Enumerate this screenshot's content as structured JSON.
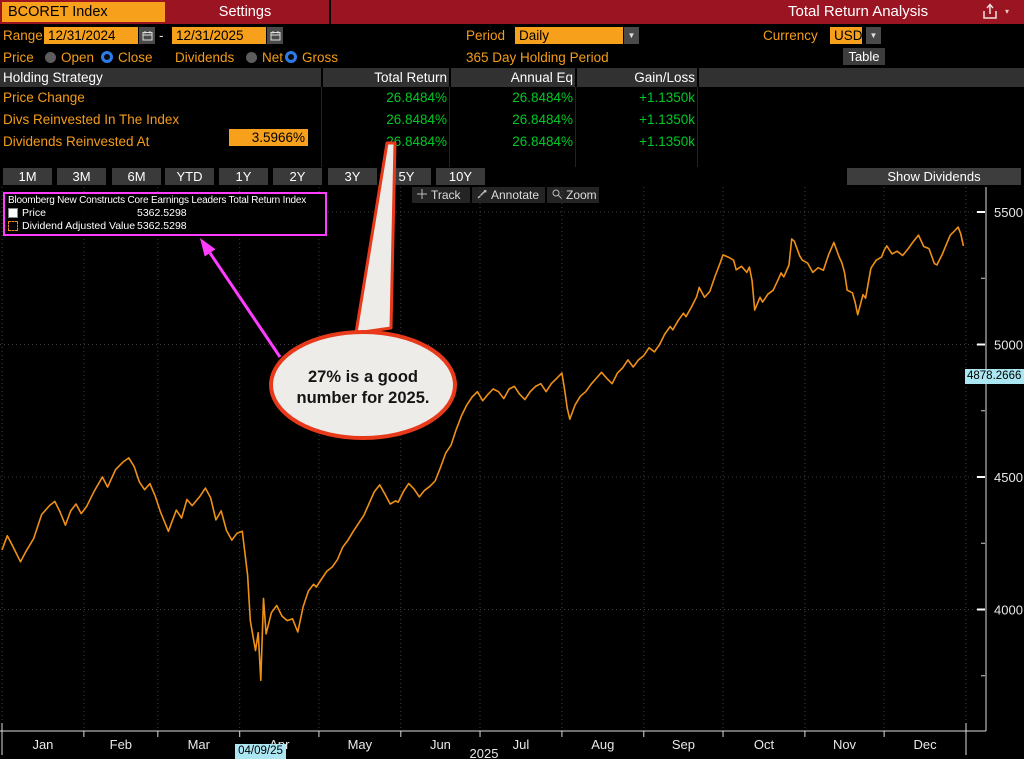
{
  "titlebar": {
    "ticker": "BCORET Index",
    "settings_tab": "Settings",
    "title": "Total Return Analysis"
  },
  "controls": {
    "range_label": "Range",
    "range_start": "12/31/2024",
    "range_separator": "-",
    "range_end": "12/31/2025",
    "period_label": "Period",
    "period_value": "Daily",
    "currency_label": "Currency",
    "currency_value": "USD",
    "price_label": "Price",
    "price_open": "Open",
    "price_close": "Close",
    "price_selected": "Close",
    "dividends_label": "Dividends",
    "dividends_net": "Net",
    "dividends_gross": "Gross",
    "dividends_selected": "Gross",
    "holding_period_text": "365 Day Holding Period",
    "table_button_label": "Table"
  },
  "strategy_table": {
    "headers": {
      "strategy": "Holding Strategy",
      "total_return": "Total Return",
      "annual_eq": "Annual Eq",
      "gain_loss": "Gain/Loss"
    },
    "rows": [
      {
        "label": "Price Change",
        "total_return": "26.8484%",
        "annual_eq": "26.8484%",
        "gain_loss": "+1.1350k"
      },
      {
        "label": "Divs Reinvested In The Index",
        "total_return": "26.8484%",
        "annual_eq": "26.8484%",
        "gain_loss": "+1.1350k"
      },
      {
        "label": "Dividends Reinvested At",
        "rate_input": "3.5966%",
        "total_return": "26.8484%",
        "annual_eq": "26.8484%",
        "gain_loss": "+1.1350k"
      }
    ]
  },
  "period_buttons": [
    "1M",
    "3M",
    "6M",
    "YTD",
    "1Y",
    "2Y",
    "3Y",
    "5Y",
    "10Y"
  ],
  "show_dividends_label": "Show Dividends",
  "chart_toolbar": {
    "track": "Track",
    "annotate": "Annotate",
    "zoom": "Zoom"
  },
  "legend": {
    "title": "Bloomberg New Constructs Core Earnings Leaders Total Return Index",
    "items": [
      {
        "label": "Price",
        "value": "5362.5298"
      },
      {
        "label": "Dividend Adjusted Value",
        "value": "5362.5298"
      }
    ]
  },
  "annotation_bubble": {
    "line1": "27% is a good",
    "line2": "number for 2025."
  },
  "crosshair": {
    "date": "04/09/25",
    "value": "4878.2666"
  },
  "colors": {
    "titlebar_red": "#9a1422",
    "amber": "#f6a01b",
    "orange_text": "#f49c1b",
    "green": "#00c926",
    "magenta": "#ff3cff",
    "callout_red": "#e8391b",
    "line_orange": "#ef9016",
    "cyan_label": "#abe6f2"
  },
  "chart_data": {
    "type": "line",
    "title": "Bloomberg New Constructs Core Earnings Leaders Total Return Index",
    "x_axis": {
      "months": [
        "Jan",
        "Feb",
        "Mar",
        "Apr",
        "May",
        "Jun",
        "Jul",
        "Aug",
        "Sep",
        "Oct",
        "Nov",
        "Dec"
      ],
      "month_start_days": [
        0,
        31,
        59,
        90,
        120,
        151,
        181,
        212,
        243,
        273,
        304,
        334,
        365
      ],
      "year_label": "2025"
    },
    "y_axis": {
      "ticks": [
        5500,
        5000,
        4500,
        4000
      ],
      "minor_ticks": [
        5250,
        4750,
        4250,
        3750
      ],
      "range": [
        3550,
        5600
      ],
      "grid": true
    },
    "series": [
      {
        "name": "Price",
        "style": "solid",
        "color": "#ef9016",
        "points": [
          [
            0,
            4225
          ],
          [
            2,
            4278
          ],
          [
            4,
            4240
          ],
          [
            7,
            4180
          ],
          [
            9,
            4218
          ],
          [
            12,
            4268
          ],
          [
            15,
            4358
          ],
          [
            18,
            4392
          ],
          [
            20,
            4408
          ],
          [
            22,
            4368
          ],
          [
            24,
            4318
          ],
          [
            26,
            4372
          ],
          [
            28,
            4398
          ],
          [
            30,
            4362
          ],
          [
            32,
            4388
          ],
          [
            35,
            4448
          ],
          [
            38,
            4500
          ],
          [
            40,
            4462
          ],
          [
            43,
            4528
          ],
          [
            46,
            4558
          ],
          [
            48,
            4572
          ],
          [
            50,
            4540
          ],
          [
            52,
            4482
          ],
          [
            54,
            4452
          ],
          [
            56,
            4475
          ],
          [
            58,
            4428
          ],
          [
            60,
            4368
          ],
          [
            63,
            4295
          ],
          [
            66,
            4375
          ],
          [
            68,
            4345
          ],
          [
            70,
            4415
          ],
          [
            72,
            4392
          ],
          [
            75,
            4428
          ],
          [
            77,
            4458
          ],
          [
            79,
            4422
          ],
          [
            81,
            4338
          ],
          [
            83,
            4372
          ],
          [
            85,
            4298
          ],
          [
            87,
            4262
          ],
          [
            89,
            4288
          ],
          [
            91,
            4295
          ],
          [
            93,
            4130
          ],
          [
            94,
            3958
          ],
          [
            96,
            3845
          ],
          [
            97,
            3912
          ],
          [
            98,
            3733
          ],
          [
            99,
            4042
          ],
          [
            100,
            3908
          ],
          [
            102,
            3988
          ],
          [
            104,
            4015
          ],
          [
            106,
            3975
          ],
          [
            108,
            3958
          ],
          [
            110,
            3965
          ],
          [
            112,
            3915
          ],
          [
            114,
            4010
          ],
          [
            116,
            4070
          ],
          [
            118,
            4095
          ],
          [
            119,
            4085
          ],
          [
            121,
            4115
          ],
          [
            123,
            4145
          ],
          [
            125,
            4160
          ],
          [
            127,
            4188
          ],
          [
            129,
            4235
          ],
          [
            131,
            4262
          ],
          [
            133,
            4295
          ],
          [
            135,
            4325
          ],
          [
            137,
            4355
          ],
          [
            139,
            4400
          ],
          [
            141,
            4445
          ],
          [
            143,
            4470
          ],
          [
            145,
            4435
          ],
          [
            147,
            4398
          ],
          [
            149,
            4410
          ],
          [
            150,
            4405
          ],
          [
            152,
            4445
          ],
          [
            154,
            4475
          ],
          [
            156,
            4455
          ],
          [
            158,
            4425
          ],
          [
            160,
            4450
          ],
          [
            162,
            4465
          ],
          [
            164,
            4485
          ],
          [
            166,
            4535
          ],
          [
            168,
            4590
          ],
          [
            170,
            4620
          ],
          [
            172,
            4680
          ],
          [
            174,
            4732
          ],
          [
            176,
            4772
          ],
          [
            178,
            4802
          ],
          [
            180,
            4822
          ],
          [
            182,
            4788
          ],
          [
            184,
            4812
          ],
          [
            186,
            4832
          ],
          [
            188,
            4822
          ],
          [
            190,
            4796
          ],
          [
            192,
            4832
          ],
          [
            194,
            4842
          ],
          [
            196,
            4812
          ],
          [
            198,
            4792
          ],
          [
            200,
            4822
          ],
          [
            202,
            4842
          ],
          [
            204,
            4852
          ],
          [
            206,
            4822
          ],
          [
            208,
            4852
          ],
          [
            210,
            4872
          ],
          [
            212,
            4892
          ],
          [
            213,
            4830
          ],
          [
            214,
            4760
          ],
          [
            215,
            4718
          ],
          [
            217,
            4772
          ],
          [
            219,
            4805
          ],
          [
            221,
            4822
          ],
          [
            223,
            4850
          ],
          [
            225,
            4872
          ],
          [
            227,
            4895
          ],
          [
            229,
            4872
          ],
          [
            231,
            4852
          ],
          [
            233,
            4892
          ],
          [
            235,
            4912
          ],
          [
            237,
            4942
          ],
          [
            239,
            4915
          ],
          [
            241,
            4942
          ],
          [
            243,
            4958
          ],
          [
            245,
            4988
          ],
          [
            247,
            4972
          ],
          [
            249,
            5000
          ],
          [
            251,
            5040
          ],
          [
            253,
            5068
          ],
          [
            254,
            5055
          ],
          [
            256,
            5090
          ],
          [
            258,
            5118
          ],
          [
            259,
            5105
          ],
          [
            261,
            5140
          ],
          [
            263,
            5180
          ],
          [
            264,
            5215
          ],
          [
            266,
            5178
          ],
          [
            268,
            5200
          ],
          [
            270,
            5258
          ],
          [
            272,
            5310
          ],
          [
            273,
            5338
          ],
          [
            275,
            5330
          ],
          [
            277,
            5318
          ],
          [
            278,
            5282
          ],
          [
            280,
            5295
          ],
          [
            282,
            5272
          ],
          [
            283,
            5292
          ],
          [
            284,
            5240
          ],
          [
            285,
            5130
          ],
          [
            287,
            5178
          ],
          [
            288,
            5160
          ],
          [
            290,
            5190
          ],
          [
            292,
            5205
          ],
          [
            294,
            5248
          ],
          [
            295,
            5270
          ],
          [
            296,
            5255
          ],
          [
            298,
            5300
          ],
          [
            299,
            5398
          ],
          [
            300,
            5390
          ],
          [
            302,
            5335
          ],
          [
            303,
            5318
          ],
          [
            305,
            5308
          ],
          [
            307,
            5272
          ],
          [
            309,
            5290
          ],
          [
            311,
            5280
          ],
          [
            313,
            5340
          ],
          [
            315,
            5385
          ],
          [
            317,
            5330
          ],
          [
            318,
            5308
          ],
          [
            319,
            5272
          ],
          [
            320,
            5205
          ],
          [
            322,
            5195
          ],
          [
            323,
            5160
          ],
          [
            324,
            5112
          ],
          [
            326,
            5188
          ],
          [
            327,
            5175
          ],
          [
            329,
            5288
          ],
          [
            331,
            5318
          ],
          [
            333,
            5330
          ],
          [
            334,
            5355
          ],
          [
            335,
            5372
          ],
          [
            337,
            5342
          ],
          [
            339,
            5352
          ],
          [
            341,
            5336
          ],
          [
            343,
            5360
          ],
          [
            345,
            5388
          ],
          [
            347,
            5413
          ],
          [
            349,
            5370
          ],
          [
            351,
            5362
          ],
          [
            353,
            5306
          ],
          [
            354,
            5300
          ],
          [
            356,
            5340
          ],
          [
            358,
            5388
          ],
          [
            359,
            5412
          ],
          [
            361,
            5432
          ],
          [
            362,
            5443
          ],
          [
            363,
            5418
          ],
          [
            364,
            5372
          ]
        ]
      },
      {
        "name": "Dividend Adjusted Value",
        "style": "dashed",
        "color": "#cfcfcf",
        "points_ref": "Price"
      }
    ],
    "last_values": {
      "price": 5362.5298,
      "dividend_adjusted_value": 5362.5298
    }
  }
}
